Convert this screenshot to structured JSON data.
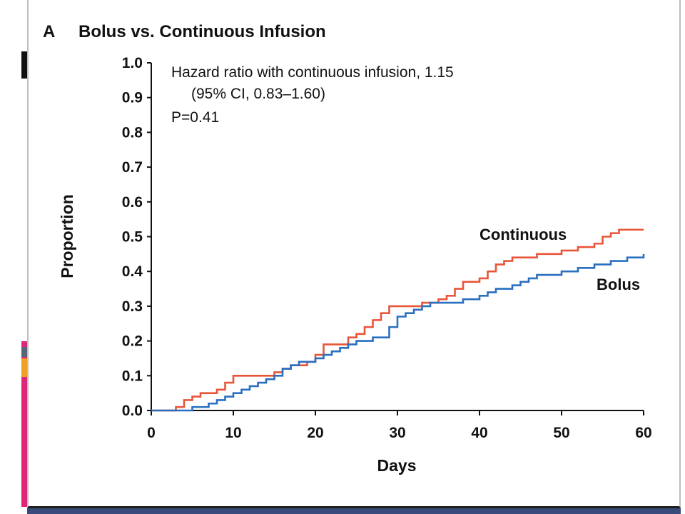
{
  "chart_data": {
    "type": "line",
    "step": true,
    "panel_label": "A",
    "title": "Bolus vs. Continuous Infusion",
    "xlabel": "Days",
    "ylabel": "Proportion",
    "xlim": [
      0,
      60
    ],
    "ylim": [
      0,
      1.0
    ],
    "x_ticks": [
      "0",
      "10",
      "20",
      "30",
      "40",
      "50",
      "60"
    ],
    "y_ticks": [
      "0.0",
      "0.1",
      "0.2",
      "0.3",
      "0.4",
      "0.5",
      "0.6",
      "0.7",
      "0.8",
      "0.9",
      "1.0"
    ],
    "annotations": [
      "Hazard ratio with continuous infusion, 1.15",
      "(95% CI, 0.83–1.60)",
      "P=0.41"
    ],
    "grid": false,
    "legend": "inline labels",
    "series": [
      {
        "name": "Continuous",
        "color": "#e8553a",
        "x": [
          0,
          3,
          4,
          5,
          6,
          8,
          9,
          10,
          15,
          16,
          17,
          19,
          20,
          21,
          24,
          25,
          26,
          27,
          28,
          29,
          33,
          34,
          35,
          36,
          37,
          38,
          39,
          40,
          41,
          42,
          43,
          44,
          45,
          47,
          49,
          50,
          52,
          54,
          55,
          56,
          57,
          60
        ],
        "y": [
          0.0,
          0.01,
          0.03,
          0.04,
          0.05,
          0.06,
          0.08,
          0.1,
          0.11,
          0.12,
          0.13,
          0.14,
          0.16,
          0.19,
          0.21,
          0.22,
          0.24,
          0.26,
          0.28,
          0.3,
          0.31,
          0.31,
          0.32,
          0.33,
          0.35,
          0.37,
          0.37,
          0.38,
          0.4,
          0.42,
          0.43,
          0.44,
          0.44,
          0.45,
          0.45,
          0.46,
          0.47,
          0.48,
          0.5,
          0.51,
          0.52,
          0.52
        ]
      },
      {
        "name": "Bolus",
        "color": "#2a6fc0",
        "x": [
          0,
          5,
          7,
          8,
          9,
          10,
          11,
          12,
          13,
          14,
          15,
          16,
          17,
          18,
          20,
          21,
          22,
          23,
          24,
          25,
          27,
          29,
          30,
          31,
          32,
          33,
          34,
          35,
          36,
          38,
          39,
          40,
          41,
          42,
          43,
          44,
          45,
          46,
          47,
          50,
          52,
          54,
          56,
          58,
          59,
          60
        ],
        "y": [
          0.0,
          0.01,
          0.02,
          0.03,
          0.04,
          0.05,
          0.06,
          0.07,
          0.08,
          0.09,
          0.1,
          0.12,
          0.13,
          0.14,
          0.15,
          0.16,
          0.17,
          0.18,
          0.19,
          0.2,
          0.21,
          0.24,
          0.27,
          0.28,
          0.29,
          0.3,
          0.31,
          0.31,
          0.31,
          0.32,
          0.32,
          0.33,
          0.34,
          0.35,
          0.35,
          0.36,
          0.37,
          0.38,
          0.39,
          0.4,
          0.41,
          0.42,
          0.43,
          0.44,
          0.44,
          0.45
        ]
      }
    ]
  },
  "colors": {
    "continuous": "#e8553a",
    "bolus": "#2a6fc0",
    "axis": "#111111",
    "slide_accent_pink": "#e0267a",
    "slide_accent_orange": "#f0a020",
    "slide_accent_navy": "#3a4a7a"
  }
}
